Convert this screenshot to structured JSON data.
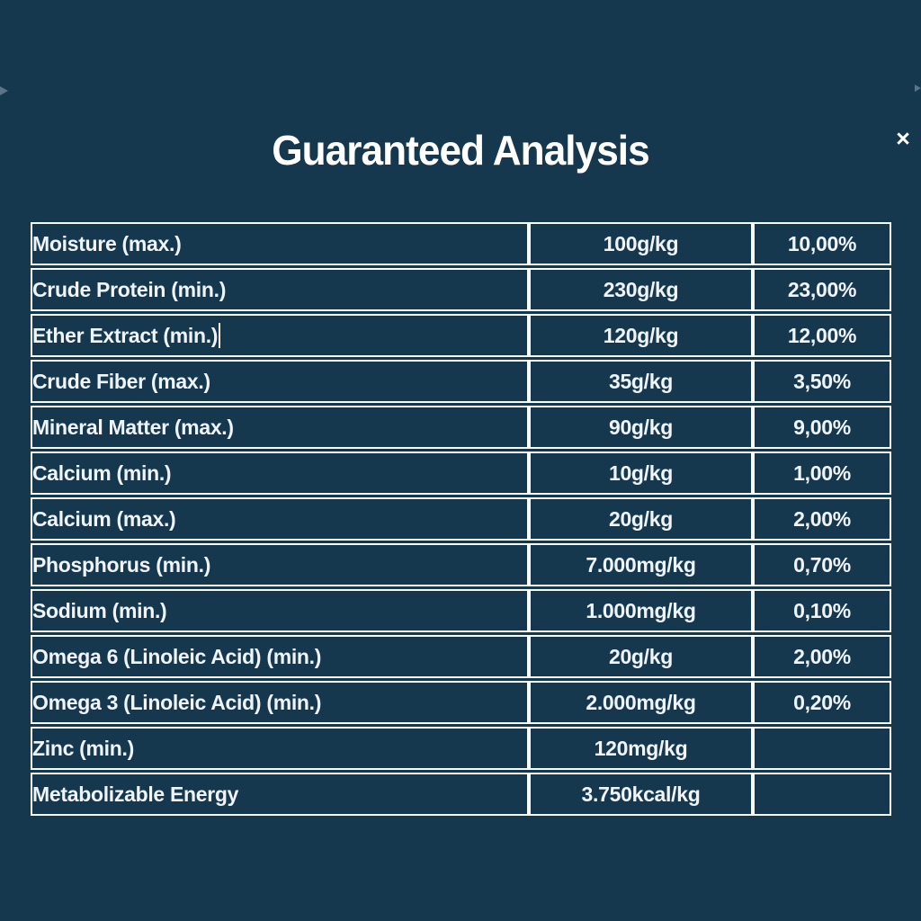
{
  "modal": {
    "title": "Guaranteed Analysis",
    "close_label": "×"
  },
  "colors": {
    "background": "#16384E",
    "table_border": "#F8FBFC",
    "text": "#EFF4F8"
  },
  "table": {
    "columns": [
      "nutrient",
      "amount",
      "percent"
    ],
    "rows": [
      {
        "name": "Moisture (max.)",
        "amount": "100g/kg",
        "percent": "10,00%",
        "editing": false
      },
      {
        "name": "Crude Protein (min.)",
        "amount": "230g/kg",
        "percent": "23,00%",
        "editing": false
      },
      {
        "name": "Ether Extract (min.)",
        "amount": "120g/kg",
        "percent": "12,00%",
        "editing": true
      },
      {
        "name": "Crude Fiber (max.)",
        "amount": "35g/kg",
        "percent": "3,50%",
        "editing": false
      },
      {
        "name": "Mineral Matter (max.)",
        "amount": "90g/kg",
        "percent": "9,00%",
        "editing": false
      },
      {
        "name": "Calcium (min.)",
        "amount": "10g/kg",
        "percent": "1,00%",
        "editing": false
      },
      {
        "name": "Calcium (max.)",
        "amount": "20g/kg",
        "percent": "2,00%",
        "editing": false
      },
      {
        "name": "Phosphorus (min.)",
        "amount": "7.000mg/kg",
        "percent": "0,70%",
        "editing": false
      },
      {
        "name": "Sodium (min.)",
        "amount": "1.000mg/kg",
        "percent": "0,10%",
        "editing": false
      },
      {
        "name": "Omega 6 (Linoleic Acid) (min.)",
        "amount": "20g/kg",
        "percent": "2,00%",
        "editing": false
      },
      {
        "name": "Omega 3 (Linoleic Acid) (min.)",
        "amount": "2.000mg/kg",
        "percent": "0,20%",
        "editing": false
      },
      {
        "name": "Zinc (min.)",
        "amount": "120mg/kg",
        "percent": "",
        "editing": false
      },
      {
        "name": "Metabolizable Energy",
        "amount": "3.750kcal/kg",
        "percent": "",
        "editing": false
      }
    ]
  }
}
